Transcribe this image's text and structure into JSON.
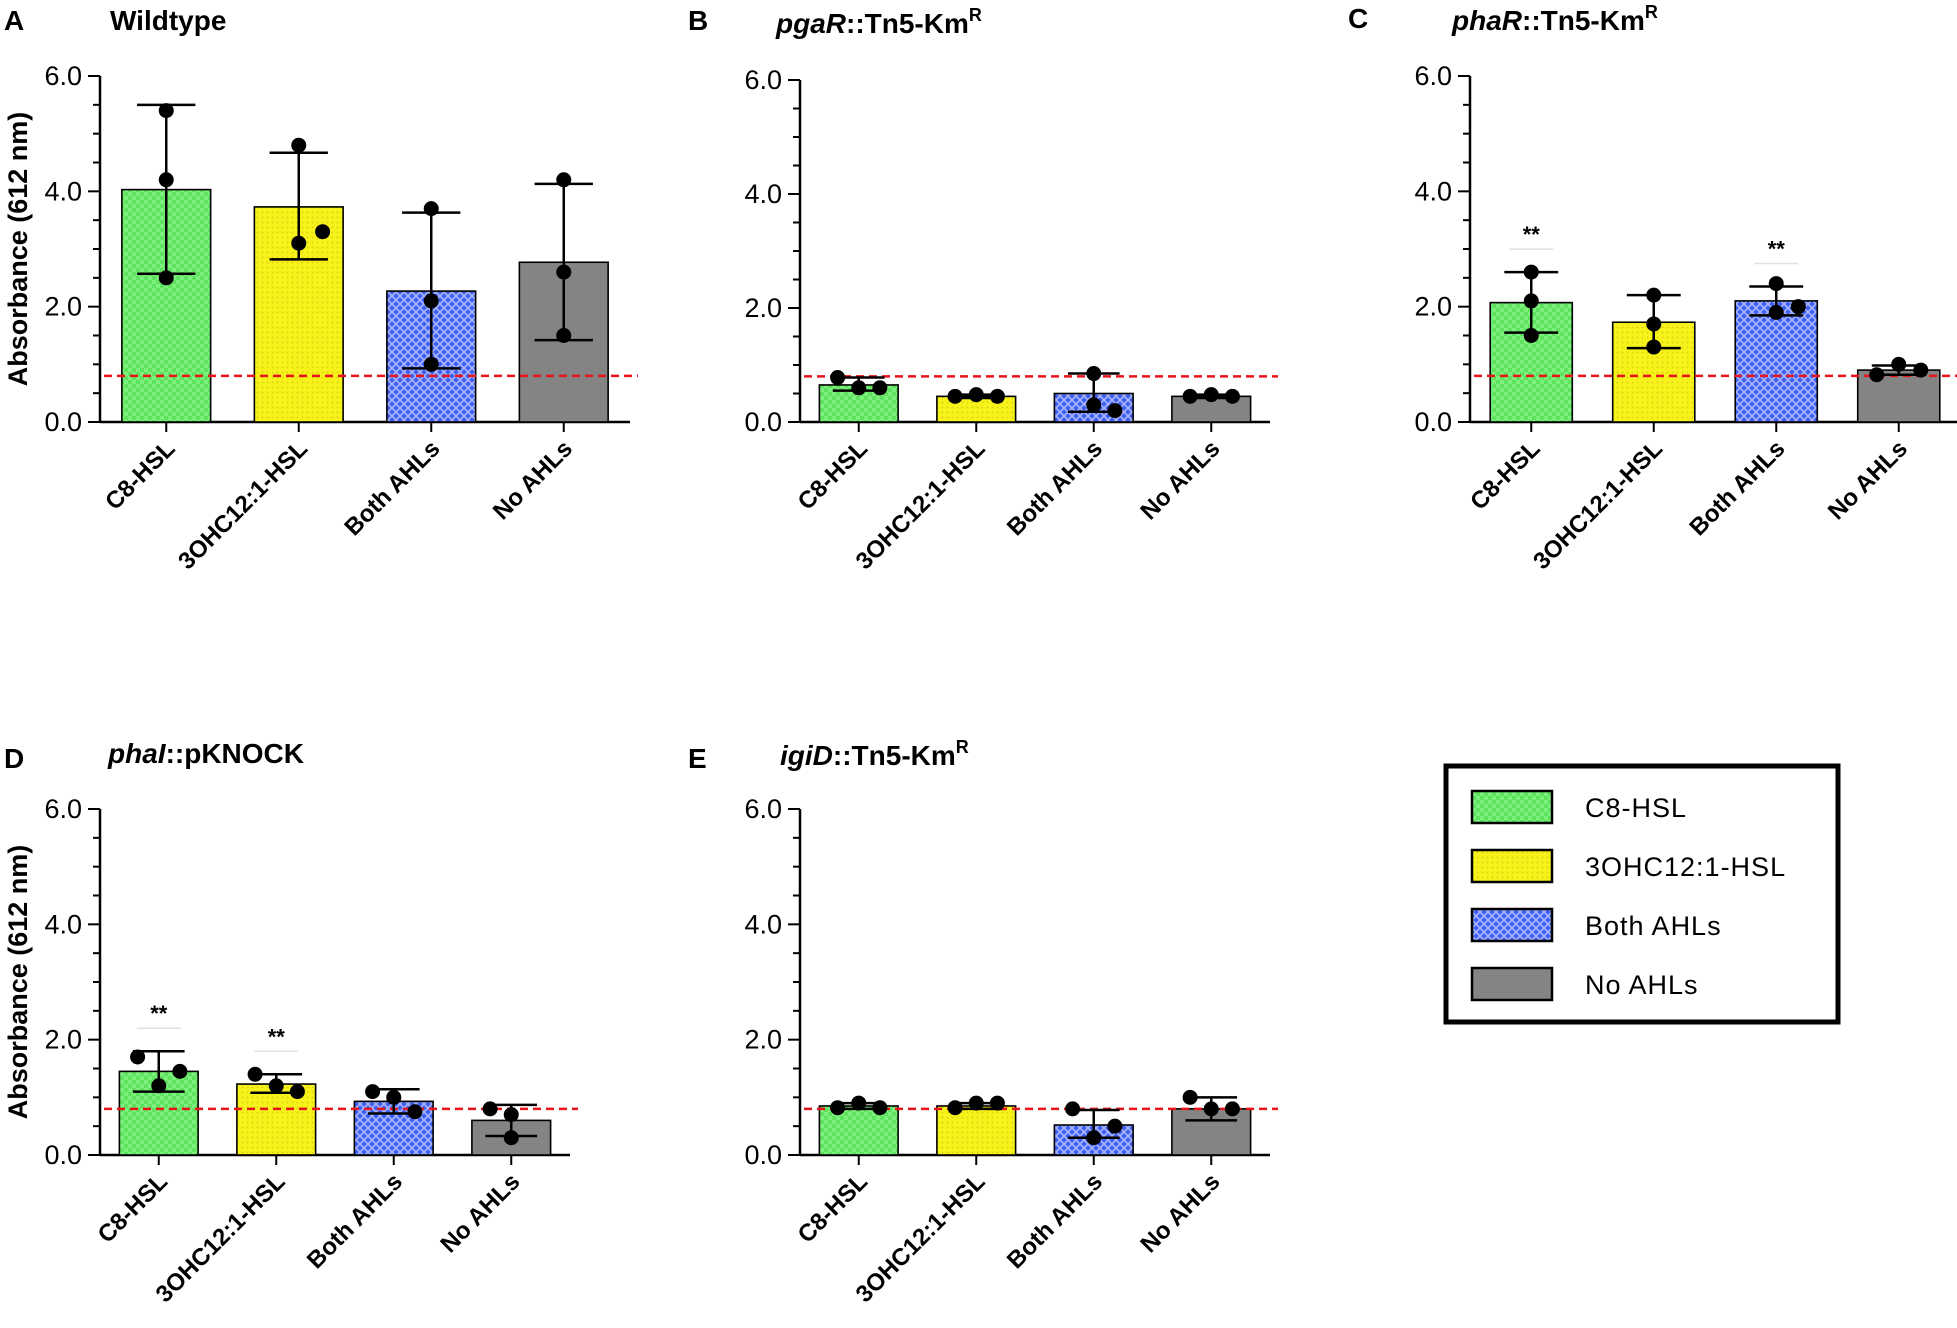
{
  "chart_data": [
    {
      "panel": "A",
      "title": "Wildtype",
      "type": "bar",
      "ylabel": "Absorbance (612 nm)",
      "ylim": [
        0,
        6
      ],
      "yticks": [
        "0.0",
        "2.0",
        "4.0",
        "6.0"
      ],
      "threshold": 0.8,
      "categories": [
        "C8-HSL",
        "3OHC12:1-HSL",
        "Both AHLs",
        "No AHLs"
      ],
      "values": [
        4.03,
        3.73,
        2.27,
        2.77
      ],
      "error_low": [
        2.57,
        2.82,
        0.93,
        1.42
      ],
      "error_high": [
        5.5,
        4.67,
        3.63,
        4.13
      ],
      "points": [
        [
          5.4,
          4.2,
          2.5
        ],
        [
          4.8,
          3.1,
          3.3
        ],
        [
          3.7,
          2.1,
          1.0
        ],
        [
          4.2,
          2.6,
          1.5
        ]
      ],
      "significance": [
        "",
        "",
        "",
        ""
      ]
    },
    {
      "panel": "B",
      "title": "pgaR::Tn5-Km",
      "title_italic": "pgaR",
      "title_rest": "::Tn5-Km",
      "title_sup": "R",
      "type": "bar",
      "ylabel": "",
      "ylim": [
        0,
        6
      ],
      "yticks": [
        "0.0",
        "2.0",
        "4.0",
        "6.0"
      ],
      "threshold": 0.8,
      "categories": [
        "C8-HSL",
        "3OHC12:1-HSL",
        "Both AHLs",
        "No AHLs"
      ],
      "values": [
        0.65,
        0.45,
        0.5,
        0.45
      ],
      "error_low": [
        0.55,
        0.42,
        0.18,
        0.42
      ],
      "error_high": [
        0.78,
        0.48,
        0.85,
        0.48
      ],
      "points": [
        [
          0.78,
          0.6,
          0.6
        ],
        [
          0.45,
          0.48,
          0.45
        ],
        [
          0.85,
          0.3,
          0.2
        ],
        [
          0.45,
          0.48,
          0.45
        ]
      ],
      "significance": [
        "",
        "",
        "",
        ""
      ]
    },
    {
      "panel": "C",
      "title": "phaR::Tn5-Km",
      "title_italic": "phaR",
      "title_rest": "::Tn5-Km",
      "title_sup": "R",
      "type": "bar",
      "ylabel": "",
      "ylim": [
        0,
        6
      ],
      "yticks": [
        "0.0",
        "2.0",
        "4.0",
        "6.0"
      ],
      "threshold": 0.8,
      "categories": [
        "C8-HSL",
        "3OHC12:1-HSL",
        "Both AHLs",
        "No AHLs"
      ],
      "values": [
        2.07,
        1.73,
        2.1,
        0.9
      ],
      "error_low": [
        1.55,
        1.28,
        1.85,
        0.82
      ],
      "error_high": [
        2.6,
        2.2,
        2.35,
        0.98
      ],
      "points": [
        [
          2.6,
          2.1,
          1.5
        ],
        [
          2.2,
          1.7,
          1.3
        ],
        [
          2.4,
          1.9,
          2.0
        ],
        [
          0.82,
          1.0,
          0.9
        ]
      ],
      "significance": [
        "**",
        "",
        "**",
        ""
      ]
    },
    {
      "panel": "D",
      "title": "phaI::pKNOCK",
      "title_italic": "phaI",
      "title_rest": "::pKNOCK",
      "title_sup": "",
      "type": "bar",
      "ylabel": "Absorbance (612 nm)",
      "ylim": [
        0,
        6
      ],
      "yticks": [
        "0.0",
        "2.0",
        "4.0",
        "6.0"
      ],
      "threshold": 0.8,
      "categories": [
        "C8-HSL",
        "3OHC12:1-HSL",
        "Both AHLs",
        "No AHLs"
      ],
      "values": [
        1.45,
        1.23,
        0.93,
        0.6
      ],
      "error_low": [
        1.1,
        1.08,
        0.72,
        0.33
      ],
      "error_high": [
        1.8,
        1.4,
        1.14,
        0.87
      ],
      "points": [
        [
          1.7,
          1.2,
          1.45
        ],
        [
          1.4,
          1.2,
          1.1
        ],
        [
          1.1,
          1.0,
          0.75
        ],
        [
          0.8,
          0.7,
          0.3
        ]
      ],
      "significance": [
        "**",
        "**",
        "",
        ""
      ]
    },
    {
      "panel": "E",
      "title": "igiD::Tn5-Km",
      "title_italic": "igiD",
      "title_rest": "::Tn5-Km",
      "title_sup": "R",
      "type": "bar",
      "ylabel": "",
      "ylim": [
        0,
        6
      ],
      "yticks": [
        "0.0",
        "2.0",
        "4.0",
        "6.0"
      ],
      "threshold": 0.8,
      "categories": [
        "C8-HSL",
        "3OHC12:1-HSL",
        "Both AHLs",
        "No AHLs"
      ],
      "values": [
        0.85,
        0.85,
        0.52,
        0.8
      ],
      "error_low": [
        0.8,
        0.8,
        0.3,
        0.6
      ],
      "error_high": [
        0.9,
        0.9,
        0.78,
        1.0
      ],
      "points": [
        [
          0.82,
          0.9,
          0.82
        ],
        [
          0.82,
          0.9,
          0.9
        ],
        [
          0.8,
          0.3,
          0.5
        ],
        [
          1.0,
          0.8,
          0.8
        ]
      ],
      "significance": [
        "",
        "",
        "",
        ""
      ]
    }
  ],
  "legend": [
    {
      "label": "C8-HSL",
      "color": "#5fe35f",
      "pattern": "checker"
    },
    {
      "label": "3OHC12:1-HSL",
      "color": "#f7f21a",
      "pattern": "dots"
    },
    {
      "label": "Both AHLs",
      "color": "#5170f0",
      "pattern": "crosshatch"
    },
    {
      "label": "No AHLs",
      "color": "#848484",
      "pattern": "solid"
    }
  ],
  "colors": {
    "threshold_line": "#e8141a",
    "axis": "#000000"
  }
}
